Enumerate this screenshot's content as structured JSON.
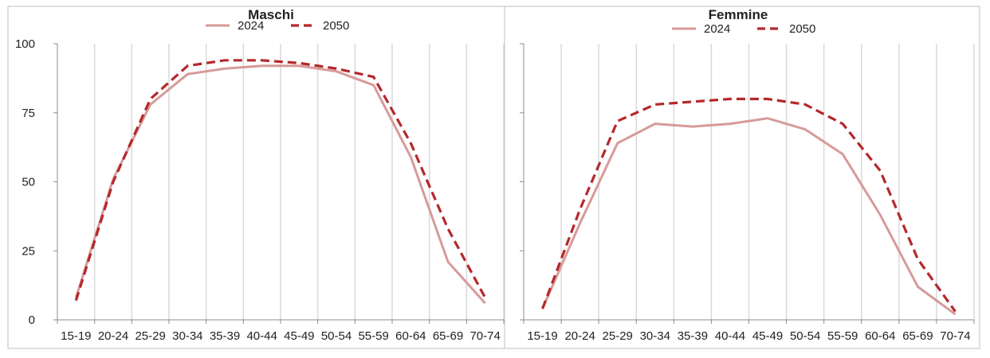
{
  "colors": {
    "series_2024": "#d79a9a",
    "series_2050": "#b5282b",
    "grid": "#d9d9d9",
    "axis": "#8c8c8c",
    "frame": "#bfbfbf"
  },
  "chart_data": [
    {
      "type": "line",
      "title": "Maschi",
      "xlabel": "",
      "ylabel": "",
      "categories": [
        "15-19",
        "20-24",
        "25-29",
        "30-34",
        "35-39",
        "40-44",
        "45-49",
        "50-54",
        "55-59",
        "60-64",
        "65-69",
        "70-74"
      ],
      "series": [
        {
          "name": "2024",
          "style": "solid",
          "values": [
            8,
            51,
            78,
            89,
            91,
            92,
            92,
            90,
            85,
            59,
            21,
            6
          ]
        },
        {
          "name": "2050",
          "style": "dashed",
          "values": [
            7,
            50,
            80,
            92,
            94,
            94,
            93,
            91,
            88,
            64,
            33,
            8
          ]
        }
      ],
      "ylim": [
        0,
        100
      ],
      "yticks": [
        0,
        25,
        50,
        75,
        100
      ],
      "grid": "vertical",
      "legend": "top-center"
    },
    {
      "type": "line",
      "title": "Femmine",
      "xlabel": "",
      "ylabel": "",
      "categories": [
        "15-19",
        "20-24",
        "25-29",
        "30-34",
        "35-39",
        "40-44",
        "45-49",
        "50-54",
        "55-59",
        "60-64",
        "65-69",
        "70-74"
      ],
      "series": [
        {
          "name": "2024",
          "style": "solid",
          "values": [
            4,
            35,
            64,
            71,
            70,
            71,
            73,
            69,
            60,
            38,
            12,
            2
          ]
        },
        {
          "name": "2050",
          "style": "dashed",
          "values": [
            4,
            40,
            72,
            78,
            79,
            80,
            80,
            78,
            71,
            54,
            22,
            3
          ]
        }
      ],
      "ylim": [
        0,
        100
      ],
      "yticks": [
        0,
        25,
        50,
        75,
        100
      ],
      "grid": "vertical",
      "legend": "top-center"
    }
  ]
}
